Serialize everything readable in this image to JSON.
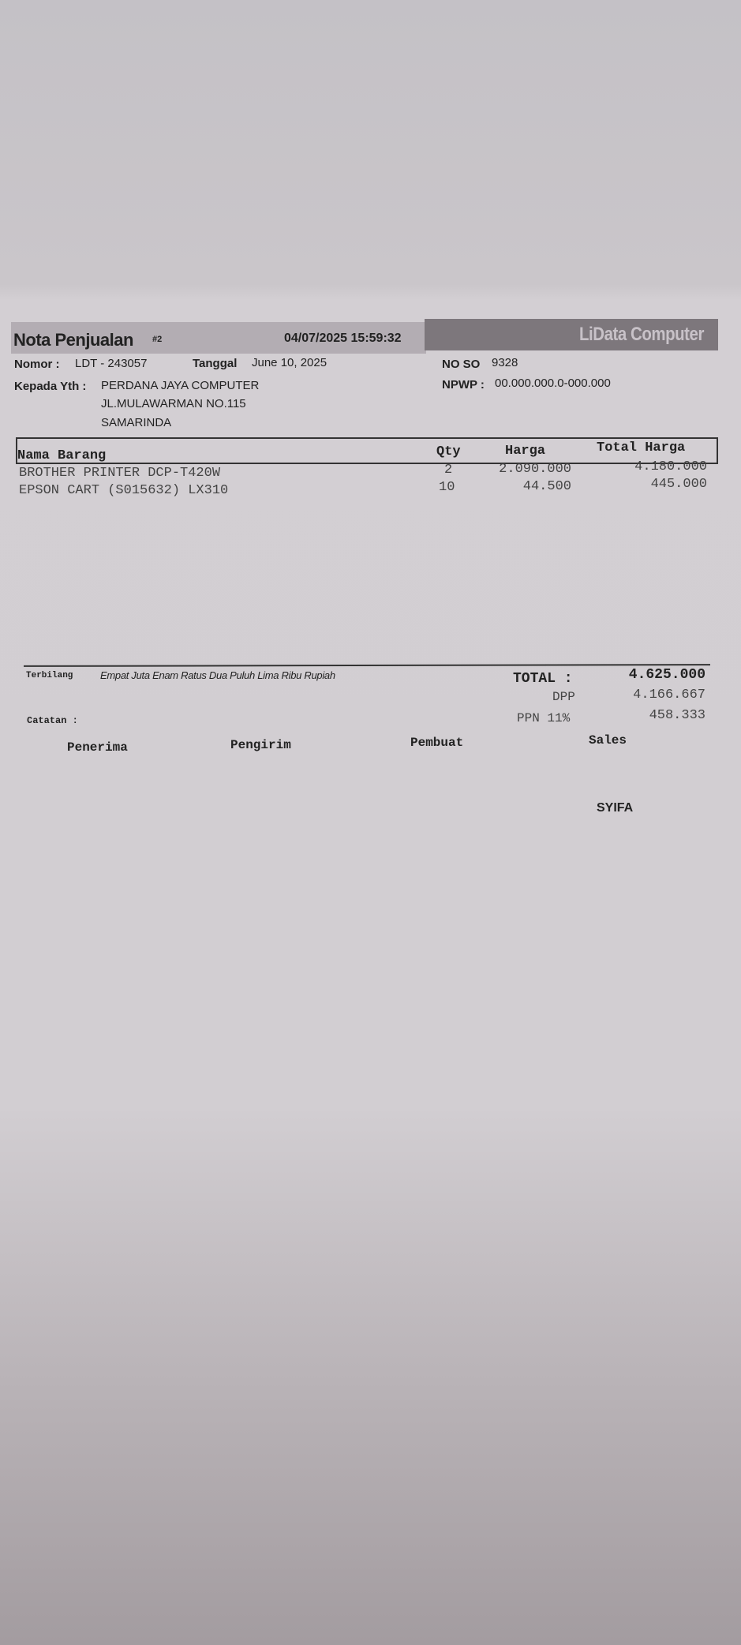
{
  "header": {
    "title": "Nota Penjualan",
    "copy_mark": "#2",
    "printed_at": "04/07/2025 15:59:32",
    "company": "LiData Computer"
  },
  "info": {
    "nomor_label": "Nomor :",
    "nomor": "LDT  - 243057",
    "tanggal_label": "Tanggal",
    "tanggal": "June 10, 2025",
    "noso_label": "NO SO",
    "noso": "9328",
    "kepada_label": "Kepada Yth :",
    "kepada": [
      "PERDANA JAYA COMPUTER",
      "JL.MULAWARMAN NO.115",
      "SAMARINDA"
    ],
    "npwp_label": "NPWP :",
    "npwp": "00.000.000.0-000.000"
  },
  "table": {
    "headers": [
      "Nama Barang",
      "Qty",
      "Harga",
      "Total Harga"
    ],
    "rows": [
      [
        "BROTHER PRINTER DCP-T420W",
        "2",
        "2.090.000",
        "4.180.000"
      ],
      [
        "EPSON CART (S015632) LX310",
        "10",
        "44.500",
        "445.000"
      ]
    ]
  },
  "summary": {
    "terbilang_label": "Terbilang",
    "terbilang": "Empat Juta Enam Ratus Dua Puluh Lima Ribu  Rupiah",
    "total_label": "TOTAL :",
    "total": "4.625.000",
    "dpp_label": "DPP",
    "dpp": "4.166.667",
    "ppn_label": "PPN 11%",
    "ppn": "458.333",
    "catatan_label": "Catatan :"
  },
  "signatures": {
    "penerima": "Penerima",
    "pengirim": "Pengirim",
    "pembuat": "Pembuat",
    "sales": "Sales",
    "sales_name": "SYIFA"
  }
}
